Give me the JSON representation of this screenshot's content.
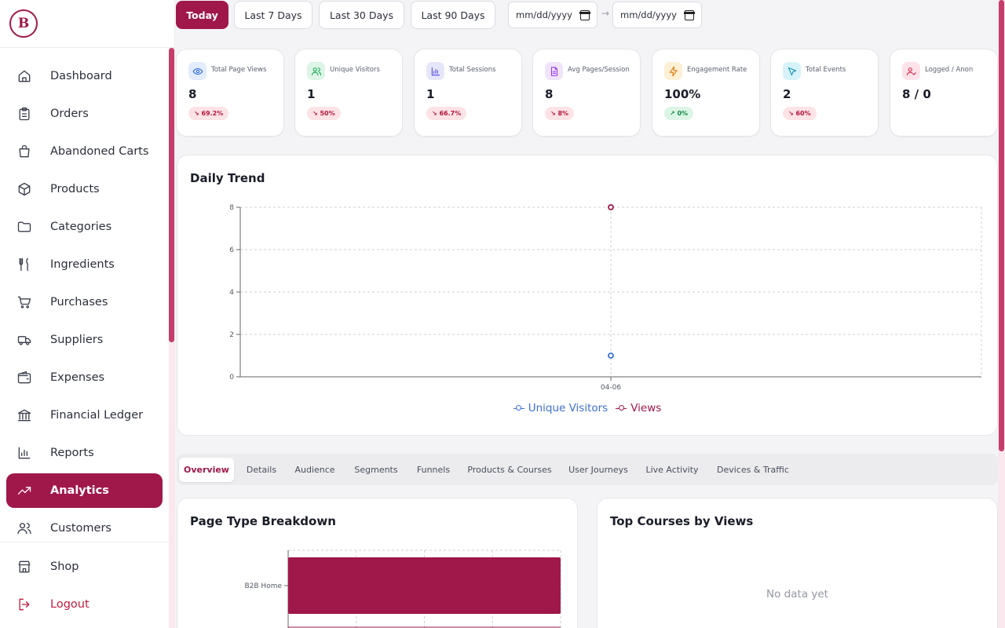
{
  "brand": {
    "logo_letter": "B",
    "accent": "#a0174a"
  },
  "sidebar": {
    "items": [
      {
        "label": "Dashboard",
        "icon": "home-icon"
      },
      {
        "label": "Orders",
        "icon": "clipboard-icon"
      },
      {
        "label": "Abandoned Carts",
        "icon": "shopping-bag-icon"
      },
      {
        "label": "Products",
        "icon": "box-icon"
      },
      {
        "label": "Categories",
        "icon": "folder-icon"
      },
      {
        "label": "Ingredients",
        "icon": "utensils-icon"
      },
      {
        "label": "Purchases",
        "icon": "cart-icon"
      },
      {
        "label": "Suppliers",
        "icon": "truck-icon"
      },
      {
        "label": "Expenses",
        "icon": "wallet-icon"
      },
      {
        "label": "Financial Ledger",
        "icon": "bank-icon"
      },
      {
        "label": "Reports",
        "icon": "bar-chart-icon"
      },
      {
        "label": "Analytics",
        "icon": "trending-up-icon",
        "active": true
      },
      {
        "label": "Customers",
        "icon": "users-icon"
      }
    ],
    "bottom": [
      {
        "label": "Shop",
        "icon": "store-icon"
      },
      {
        "label": "Logout",
        "icon": "logout-icon"
      }
    ]
  },
  "filters": {
    "buttons": [
      "Today",
      "Last 7 Days",
      "Last 30 Days",
      "Last 90 Days"
    ],
    "active": "Today",
    "date_from_placeholder": "mm/dd/yyyy",
    "date_to_placeholder": "mm/dd/yyyy",
    "separator": "→"
  },
  "stats": [
    {
      "label": "Total Page Views",
      "value": "8",
      "change": "↘ 69.2%",
      "trend": "down",
      "icon": "eye-icon",
      "color": "#2563eb",
      "bg": "#e3ecfd"
    },
    {
      "label": "Unique Visitors",
      "value": "1",
      "change": "↘ 50%",
      "trend": "down",
      "icon": "users-icon",
      "color": "#16a34a",
      "bg": "#dcf5e6"
    },
    {
      "label": "Total Sessions",
      "value": "1",
      "change": "↘ 66.7%",
      "trend": "down",
      "icon": "bar-chart-icon",
      "color": "#4f46e5",
      "bg": "#e6e6fb"
    },
    {
      "label": "Avg Pages/Session",
      "value": "8",
      "change": "↘ 8%",
      "trend": "down",
      "icon": "file-icon",
      "color": "#9333ea",
      "bg": "#f0e4fb"
    },
    {
      "label": "Engagement Rate",
      "value": "100%",
      "change": "↗ 0%",
      "trend": "up",
      "icon": "lightning-icon",
      "color": "#d97706",
      "bg": "#fdf0d5"
    },
    {
      "label": "Total Events",
      "value": "2",
      "change": "↘ 60%",
      "trend": "down",
      "icon": "cursor-icon",
      "color": "#0891b2",
      "bg": "#d7f3f9"
    },
    {
      "label": "Logged / Anon",
      "value": "8 / 0",
      "change": "",
      "trend": "",
      "icon": "user-check-icon",
      "color": "#e11d48",
      "bg": "#fde3e9"
    }
  ],
  "daily_trend": {
    "title": "Daily Trend",
    "chart_data": {
      "type": "line",
      "categories": [
        "04-06"
      ],
      "series": [
        {
          "name": "Unique Visitors",
          "values": [
            1
          ],
          "color": "#3b6fd9"
        },
        {
          "name": "Views",
          "values": [
            8
          ],
          "color": "#a0174a"
        }
      ],
      "ylim": [
        0,
        8
      ],
      "yticks": [
        0,
        2,
        4,
        6,
        8
      ],
      "grid": true,
      "legend": "bottom-center"
    }
  },
  "tabs": [
    "Overview",
    "Details",
    "Audience",
    "Segments",
    "Funnels",
    "Products & Courses",
    "User Journeys",
    "Live Activity",
    "Devices & Traffic"
  ],
  "active_tab": "Overview",
  "page_type": {
    "title": "Page Type Breakdown",
    "chart_data": {
      "type": "bar",
      "orientation": "horizontal",
      "categories": [
        "B2B Home"
      ],
      "values": [
        8
      ],
      "color": "#a0174a",
      "grid": true
    }
  },
  "top_courses": {
    "title": "Top Courses by Views",
    "empty_text": "No data yet"
  }
}
